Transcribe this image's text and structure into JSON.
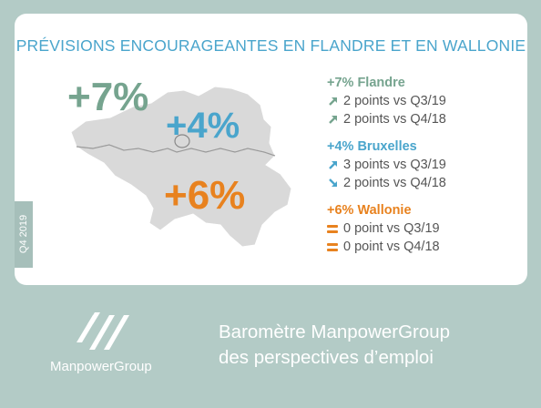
{
  "title": "PRÉVISIONS ENCOURAGEANTES EN FLANDRE ET EN WALLONIE",
  "quarter_tag": "Q4 2019",
  "map": {
    "flandre_big": "+7%",
    "bruxelles_big": "+4%",
    "wallonie_big": "+6%"
  },
  "regions": [
    {
      "heading": "+7% Flandre",
      "color": "#76a48f",
      "rows": [
        {
          "trend": "up",
          "text": "2 points vs Q3/19"
        },
        {
          "trend": "up",
          "text": "2 points vs Q4/18"
        }
      ]
    },
    {
      "heading": "+4% Bruxelles",
      "color": "#4aa5cc",
      "rows": [
        {
          "trend": "up",
          "text": "3 points vs Q3/19"
        },
        {
          "trend": "down",
          "text": "2 points vs Q4/18"
        }
      ]
    },
    {
      "heading": "+6% Wallonie",
      "color": "#e8821f",
      "rows": [
        {
          "trend": "equal",
          "text": "0 point vs Q3/19"
        },
        {
          "trend": "equal",
          "text": "0 point vs Q4/18"
        }
      ]
    }
  ],
  "brand": "ManpowerGroup",
  "tagline_line1": "Baromètre ManpowerGroup",
  "tagline_line2": "des perspectives d’emploi"
}
